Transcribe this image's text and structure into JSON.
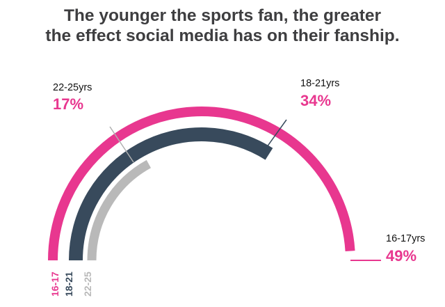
{
  "title": {
    "line1": "The younger the sports fan, the greater",
    "line2": "the effect social media has on their fanship."
  },
  "chart_data": {
    "type": "radial-bar",
    "scale_max_percent": 100,
    "series": [
      {
        "name": "16-17yrs",
        "short_label": "16-17",
        "value": 49,
        "value_label": "49%",
        "color": "#e8378f"
      },
      {
        "name": "18-21yrs",
        "short_label": "18-21",
        "value": 34,
        "value_label": "34%",
        "color": "#384a5c"
      },
      {
        "name": "22-25yrs",
        "short_label": "22-25",
        "value": 17,
        "value_label": "17%",
        "color": "#b9b9b9"
      }
    ],
    "pct_color": "#e8378f"
  }
}
